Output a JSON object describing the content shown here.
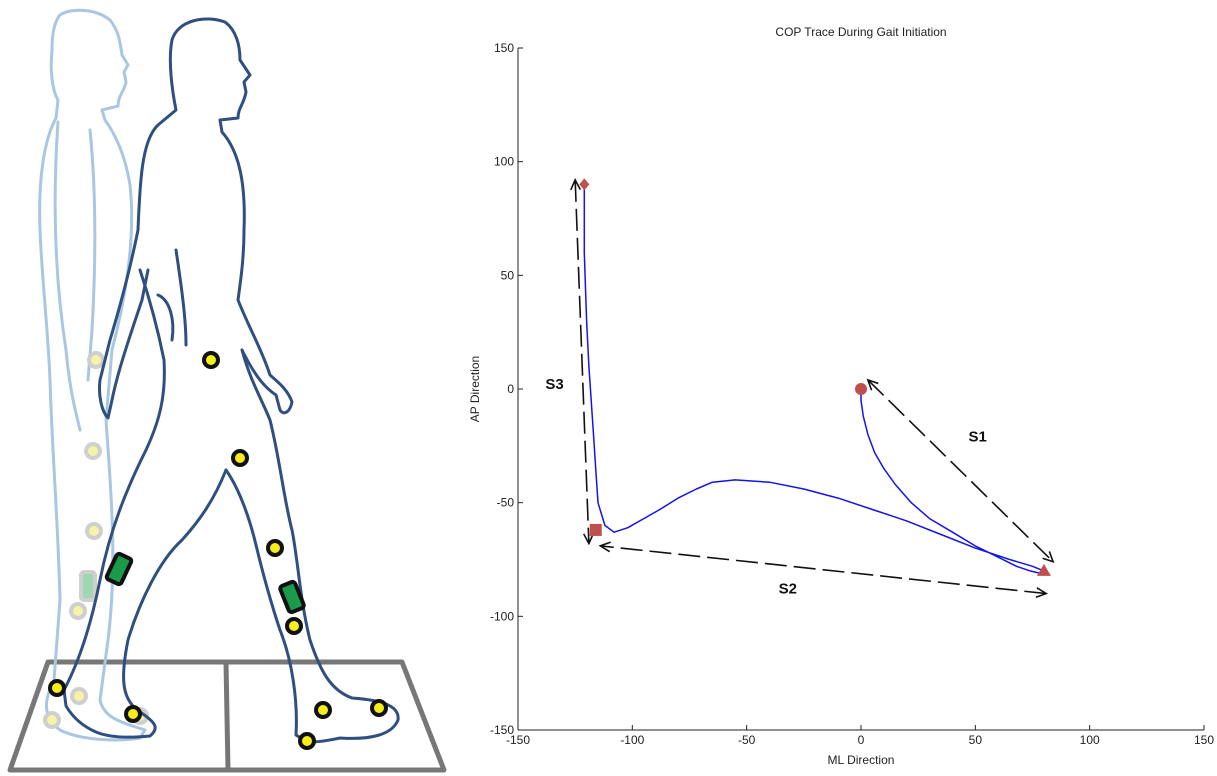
{
  "illustration": {
    "description_icon": "walking-figure-with-markers",
    "front_body_color": "#2e4f80",
    "ghost_body_color": "#a9c6e2",
    "marker_fill": "#f5ee1a",
    "sensor_fill": "#1a9a4a",
    "plate_color": "#777777"
  },
  "chart_data": {
    "type": "line",
    "title": "COP Trace During Gait Initiation",
    "xlabel": "ML Direction",
    "ylabel": "AP Direction",
    "xlim": [
      -150,
      150
    ],
    "ylim": [
      -150,
      150
    ],
    "xticks": [
      -150,
      -100,
      -50,
      0,
      50,
      100,
      150
    ],
    "yticks": [
      -150,
      -100,
      -50,
      0,
      50,
      100,
      150
    ],
    "xtick_labels": [
      "-150",
      "-100",
      "-50",
      "0",
      "50",
      "100",
      "150"
    ],
    "ytick_labels": [
      "-150",
      "-100",
      "-50",
      "0",
      "50",
      "100",
      "150"
    ],
    "grid": false,
    "line_color": "#1414e6",
    "marker_color": "#c0504d",
    "series": [
      {
        "x": [
          0,
          0,
          1,
          3,
          6,
          10,
          15,
          22,
          30,
          40,
          50,
          60,
          68,
          74,
          78,
          80,
          75,
          65,
          50,
          35,
          20,
          5,
          -10,
          -25,
          -40,
          -55,
          -65,
          -72,
          -80,
          -88,
          -95,
          -102,
          -108,
          -112,
          -115,
          -116,
          -117,
          -118,
          -119,
          -120,
          -121,
          -121
        ],
        "y": [
          0,
          -5,
          -12,
          -20,
          -28,
          -35,
          -42,
          -50,
          -57,
          -63,
          -69,
          -74,
          -78,
          -80,
          -81,
          -80,
          -78,
          -75,
          -70,
          -64,
          -58,
          -53,
          -48,
          -44,
          -41,
          -40,
          -41,
          -44,
          -48,
          -53,
          -57,
          -61,
          -63,
          -60,
          -50,
          -35,
          -20,
          -5,
          10,
          30,
          60,
          90
        ]
      }
    ],
    "markers": [
      {
        "shape": "circle",
        "x": 0,
        "y": 0
      },
      {
        "shape": "triangle",
        "x": 80,
        "y": -80
      },
      {
        "shape": "square",
        "x": -116,
        "y": -62
      },
      {
        "shape": "diamond",
        "x": -121,
        "y": 90
      }
    ],
    "annotations": [
      {
        "label": "S1",
        "from": [
          3,
          4
        ],
        "to": [
          84,
          -76
        ],
        "label_at": [
          51,
          -23
        ]
      },
      {
        "label": "S2",
        "from": [
          81,
          -90
        ],
        "to": [
          -114,
          -69
        ],
        "label_at": [
          -32,
          -90
        ]
      },
      {
        "label": "S3",
        "from": [
          -125,
          92
        ],
        "to": [
          -119,
          -68
        ],
        "label_at": [
          -134,
          0
        ]
      }
    ]
  }
}
